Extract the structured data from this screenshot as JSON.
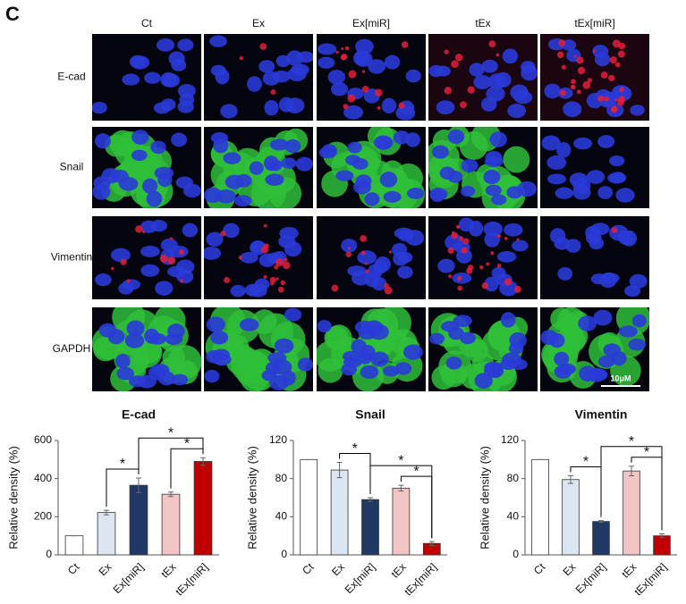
{
  "panel_label": "C",
  "columns": [
    "Ct",
    "Ex",
    "Ex[miR]",
    "tEx",
    "tEx[miR]"
  ],
  "rows": [
    "E-cad",
    "Snail",
    "Vimentin",
    "GAPDH"
  ],
  "scale_bar": "10μM",
  "chart_data": [
    {
      "type": "bar",
      "title": "E-cad",
      "y_label": "Relative density (%)",
      "categories": [
        "Ct",
        "Ex",
        "Ex[miR]",
        "tEx",
        "tEx[miR]"
      ],
      "values": [
        100,
        222,
        365,
        318,
        490
      ],
      "errors": [
        0,
        12,
        38,
        12,
        20
      ],
      "colors": [
        "#ffffff",
        "#dce6f2",
        "#1f3864",
        "#f2c4c4",
        "#c00000"
      ],
      "ylim": [
        0,
        600
      ],
      "yticks": [
        0,
        200,
        400,
        600
      ],
      "annotations": [
        "*",
        "*",
        "*"
      ]
    },
    {
      "type": "bar",
      "title": "Snail",
      "y_label": "Relative density (%)",
      "categories": [
        "Ct",
        "Ex",
        "Ex[miR]",
        "tEx",
        "tEx[miR]"
      ],
      "values": [
        100,
        89,
        58,
        70,
        12
      ],
      "errors": [
        0,
        8,
        2,
        3,
        2
      ],
      "colors": [
        "#ffffff",
        "#dce6f2",
        "#1f3864",
        "#f2c4c4",
        "#c00000"
      ],
      "ylim": [
        0,
        120
      ],
      "yticks": [
        0,
        40,
        80,
        120
      ],
      "annotations": [
        "*",
        "*",
        "*"
      ]
    },
    {
      "type": "bar",
      "title": "Vimentin",
      "y_label": "Relative density (%)",
      "categories": [
        "Ct",
        "Ex",
        "Ex[miR]",
        "tEx",
        "tEx[miR]"
      ],
      "values": [
        100,
        79,
        35,
        88,
        20
      ],
      "errors": [
        0,
        4,
        1,
        5,
        2
      ],
      "colors": [
        "#ffffff",
        "#dce6f2",
        "#1f3864",
        "#f2c4c4",
        "#c00000"
      ],
      "ylim": [
        0,
        120
      ],
      "yticks": [
        0,
        40,
        80,
        120
      ],
      "annotations": [
        "*",
        "*",
        "*"
      ]
    }
  ]
}
